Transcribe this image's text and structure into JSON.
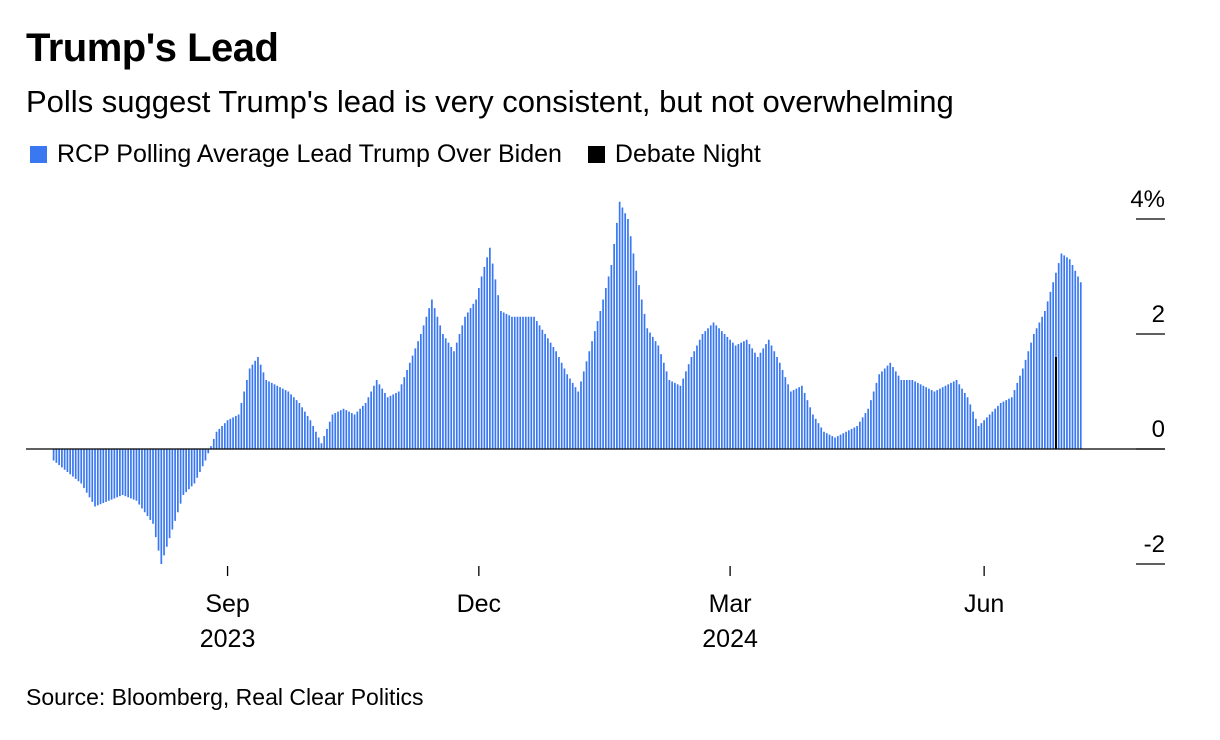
{
  "title": "Trump's Lead",
  "subtitle": "Polls suggest Trump's lead is very consistent, but not overwhelming",
  "legend": [
    {
      "label": "RCP Polling Average Lead Trump Over Biden",
      "color": "#3a78f2"
    },
    {
      "label": "Debate Night",
      "color": "#000000"
    }
  ],
  "source": "Source: Bloomberg, Real Clear Politics",
  "chart_data": {
    "type": "bar",
    "title": "Trump's Lead",
    "subtitle": "Polls suggest Trump's lead is very consistent, but not overwhelming",
    "x_start": "2023-06-20",
    "x_end": "2024-07-26",
    "y_axis": {
      "position": "right",
      "ticks": [
        -2,
        0,
        2,
        4
      ],
      "tick_labels": [
        "-2",
        "0",
        "2",
        "4%"
      ],
      "ylim": [
        -2,
        4.3
      ]
    },
    "x_ticks": [
      {
        "date": "2023-09-01",
        "label": "Sep",
        "year": "2023"
      },
      {
        "date": "2023-12-01",
        "label": "Dec",
        "year": ""
      },
      {
        "date": "2024-03-01",
        "label": "Mar",
        "year": "2024"
      },
      {
        "date": "2024-06-01",
        "label": "Jun",
        "year": ""
      }
    ],
    "grid": false,
    "legend_position": "top-left",
    "series": [
      {
        "name": "RCP Polling Average Lead Trump Over Biden",
        "color": "#3a78f2",
        "points": [
          [
            "2023-06-30",
            -0.2
          ],
          [
            "2023-07-05",
            -0.4
          ],
          [
            "2023-07-10",
            -0.6
          ],
          [
            "2023-07-15",
            -1.0
          ],
          [
            "2023-07-20",
            -0.9
          ],
          [
            "2023-07-25",
            -0.8
          ],
          [
            "2023-07-30",
            -0.9
          ],
          [
            "2023-08-05",
            -1.3
          ],
          [
            "2023-08-08",
            -2.0
          ],
          [
            "2023-08-12",
            -1.4
          ],
          [
            "2023-08-16",
            -0.8
          ],
          [
            "2023-08-20",
            -0.6
          ],
          [
            "2023-08-24",
            -0.2
          ],
          [
            "2023-08-28",
            0.3
          ],
          [
            "2023-09-01",
            0.5
          ],
          [
            "2023-09-05",
            0.6
          ],
          [
            "2023-09-09",
            1.4
          ],
          [
            "2023-09-12",
            1.6
          ],
          [
            "2023-09-15",
            1.2
          ],
          [
            "2023-09-19",
            1.1
          ],
          [
            "2023-09-23",
            1.0
          ],
          [
            "2023-09-27",
            0.8
          ],
          [
            "2023-10-01",
            0.5
          ],
          [
            "2023-10-05",
            0.1
          ],
          [
            "2023-10-09",
            0.6
          ],
          [
            "2023-10-13",
            0.7
          ],
          [
            "2023-10-17",
            0.6
          ],
          [
            "2023-10-21",
            0.8
          ],
          [
            "2023-10-25",
            1.2
          ],
          [
            "2023-10-29",
            0.9
          ],
          [
            "2023-11-02",
            1.0
          ],
          [
            "2023-11-06",
            1.5
          ],
          [
            "2023-11-10",
            2.0
          ],
          [
            "2023-11-14",
            2.6
          ],
          [
            "2023-11-18",
            2.0
          ],
          [
            "2023-11-22",
            1.7
          ],
          [
            "2023-11-26",
            2.3
          ],
          [
            "2023-11-30",
            2.6
          ],
          [
            "2023-12-02",
            3.0
          ],
          [
            "2023-12-05",
            3.5
          ],
          [
            "2023-12-09",
            2.4
          ],
          [
            "2023-12-13",
            2.3
          ],
          [
            "2023-12-17",
            2.3
          ],
          [
            "2023-12-21",
            2.3
          ],
          [
            "2023-12-25",
            2.0
          ],
          [
            "2023-12-29",
            1.7
          ],
          [
            "2024-01-02",
            1.3
          ],
          [
            "2024-01-06",
            1.0
          ],
          [
            "2024-01-10",
            1.7
          ],
          [
            "2024-01-14",
            2.4
          ],
          [
            "2024-01-18",
            3.2
          ],
          [
            "2024-01-21",
            4.3
          ],
          [
            "2024-01-24",
            4.0
          ],
          [
            "2024-01-27",
            3.1
          ],
          [
            "2024-01-31",
            2.1
          ],
          [
            "2024-02-04",
            1.8
          ],
          [
            "2024-02-08",
            1.2
          ],
          [
            "2024-02-12",
            1.1
          ],
          [
            "2024-02-16",
            1.6
          ],
          [
            "2024-02-20",
            2.0
          ],
          [
            "2024-02-24",
            2.2
          ],
          [
            "2024-02-28",
            2.0
          ],
          [
            "2024-03-03",
            1.8
          ],
          [
            "2024-03-07",
            1.9
          ],
          [
            "2024-03-11",
            1.6
          ],
          [
            "2024-03-15",
            1.9
          ],
          [
            "2024-03-19",
            1.5
          ],
          [
            "2024-03-23",
            1.0
          ],
          [
            "2024-03-27",
            1.1
          ],
          [
            "2024-03-31",
            0.6
          ],
          [
            "2024-04-04",
            0.3
          ],
          [
            "2024-04-08",
            0.2
          ],
          [
            "2024-04-12",
            0.3
          ],
          [
            "2024-04-16",
            0.4
          ],
          [
            "2024-04-20",
            0.7
          ],
          [
            "2024-04-24",
            1.3
          ],
          [
            "2024-04-28",
            1.5
          ],
          [
            "2024-05-02",
            1.2
          ],
          [
            "2024-05-06",
            1.2
          ],
          [
            "2024-05-10",
            1.1
          ],
          [
            "2024-05-14",
            1.0
          ],
          [
            "2024-05-18",
            1.1
          ],
          [
            "2024-05-22",
            1.2
          ],
          [
            "2024-05-26",
            0.9
          ],
          [
            "2024-05-30",
            0.4
          ],
          [
            "2024-06-03",
            0.6
          ],
          [
            "2024-06-07",
            0.8
          ],
          [
            "2024-06-11",
            0.9
          ],
          [
            "2024-06-15",
            1.4
          ],
          [
            "2024-06-19",
            2.0
          ],
          [
            "2024-06-23",
            2.4
          ],
          [
            "2024-06-26",
            2.9
          ],
          [
            "2024-06-29",
            3.4
          ],
          [
            "2024-07-02",
            3.3
          ],
          [
            "2024-07-05",
            3.0
          ],
          [
            "2024-07-06",
            2.9
          ]
        ]
      },
      {
        "name": "Debate Night",
        "color": "#000000",
        "points": [
          [
            "2024-06-27",
            1.6
          ]
        ]
      }
    ]
  }
}
